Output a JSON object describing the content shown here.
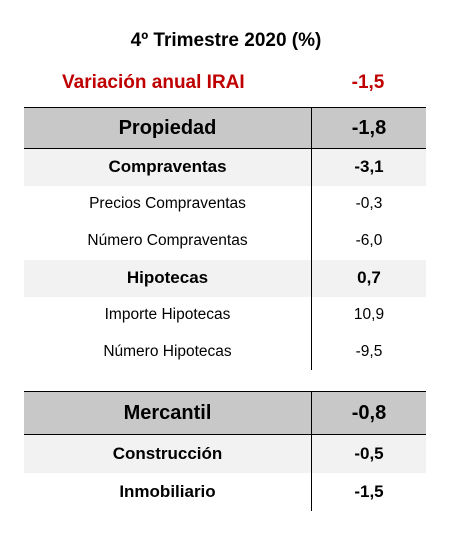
{
  "title": "4º Trimestre 2020 (%)",
  "irai": {
    "label": "Variación anual IRAI",
    "value": "-1,5",
    "color": "#c00000"
  },
  "propiedad": {
    "header": {
      "label": "Propiedad",
      "value": "-1,8"
    },
    "rows": [
      {
        "label": "Compraventas",
        "value": "-3,1",
        "style": "sub"
      },
      {
        "label": "Precios Compraventas",
        "value": "-0,3",
        "style": "item"
      },
      {
        "label": "Número Compraventas",
        "value": "-6,0",
        "style": "item"
      },
      {
        "label": "Hipotecas",
        "value": "0,7",
        "style": "sub"
      },
      {
        "label": "Importe Hipotecas",
        "value": "10,9",
        "style": "item"
      },
      {
        "label": "Número Hipotecas",
        "value": "-9,5",
        "style": "item"
      }
    ]
  },
  "mercantil": {
    "header": {
      "label": "Mercantil",
      "value": "-0,8"
    },
    "rows": [
      {
        "label": "Construcción",
        "value": "-0,5",
        "style": "sub"
      },
      {
        "label": "Inmobiliario",
        "value": "-1,5",
        "style": "bold"
      }
    ]
  }
}
